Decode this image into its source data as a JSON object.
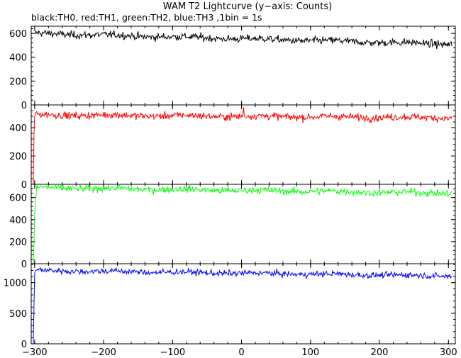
{
  "title": "WAM T2 Lightcurve (y−axis: Counts)",
  "subtitle": "black:TH0, red:TH1, green:TH2, blue:TH3 ,1bin = 1s",
  "chart_data": {
    "type": "line",
    "title": "WAM T2 Lightcurve (y−axis: Counts)",
    "subtitle": "black:TH0, red:TH1, green:TH2, blue:TH3 ,1bin = 1s",
    "xlim": [
      -305,
      310
    ],
    "x_ticks": [
      -300,
      -200,
      -100,
      0,
      100,
      200,
      300
    ],
    "x_tick_labels": [
      "−300",
      "−200",
      "−100",
      "0",
      "100",
      "200",
      "300"
    ],
    "x_step": 1,
    "panels": [
      {
        "name": "TH0",
        "color": "#000000",
        "ylim": [
          0,
          660
        ],
        "y_ticks": [
          0,
          200,
          400,
          600
        ],
        "baseline_start": 600,
        "baseline_end": 510,
        "noise": 22,
        "first_valid_x": -300,
        "rise": []
      },
      {
        "name": "TH1",
        "color": "#ff0000",
        "ylim": [
          0,
          560
        ],
        "y_ticks": [
          0,
          200,
          400
        ],
        "baseline_start": 490,
        "baseline_end": 470,
        "noise": 18,
        "first_valid_x": -300,
        "rise": [
          [
            -302,
            0
          ],
          [
            -301,
            350
          ]
        ]
      },
      {
        "name": "TH2",
        "color": "#00ff00",
        "ylim": [
          0,
          720
        ],
        "y_ticks": [
          0,
          200,
          400,
          600
        ],
        "baseline_start": 690,
        "baseline_end": 640,
        "noise": 22,
        "first_valid_x": -297,
        "rise": [
          [
            -302,
            0
          ],
          [
            -301,
            200
          ],
          [
            -300,
            450
          ],
          [
            -299,
            550
          ],
          [
            -298,
            620
          ]
        ]
      },
      {
        "name": "TH3",
        "color": "#0000ff",
        "ylim": [
          0,
          1310
        ],
        "y_ticks": [
          0,
          500,
          1000
        ],
        "baseline_start": 1200,
        "baseline_end": 1110,
        "noise": 35,
        "first_valid_x": -299,
        "rise": [
          [
            -303,
            0
          ],
          [
            -302,
            0
          ],
          [
            -301,
            600
          ],
          [
            -300,
            1150
          ]
        ]
      }
    ]
  }
}
